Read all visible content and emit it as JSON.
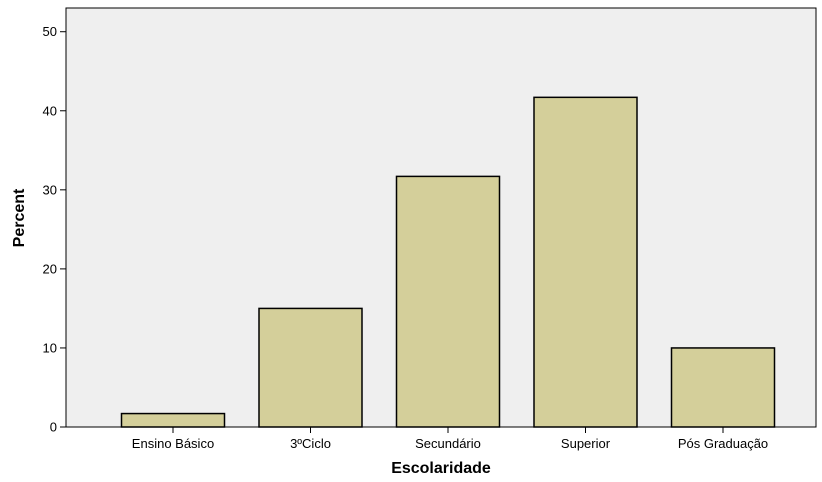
{
  "chart_data": {
    "type": "bar",
    "title": "",
    "xlabel": "Escolaridade",
    "ylabel": "Percent",
    "categories": [
      "Ensino Básico",
      "3ºCiclo",
      "Secundário",
      "Superior",
      "Pós Graduação"
    ],
    "values": [
      1.7,
      15.0,
      31.7,
      41.7,
      10.0
    ],
    "ylim": [
      0,
      53
    ],
    "yticks": [
      "0",
      "10",
      "20",
      "30",
      "40",
      "50"
    ],
    "grid": false,
    "legend": "none",
    "colors": {
      "bar_fill": "#d4cf9a",
      "bar_stroke": "#000000",
      "plot_background": "#efefef",
      "axis": "#000000"
    }
  }
}
